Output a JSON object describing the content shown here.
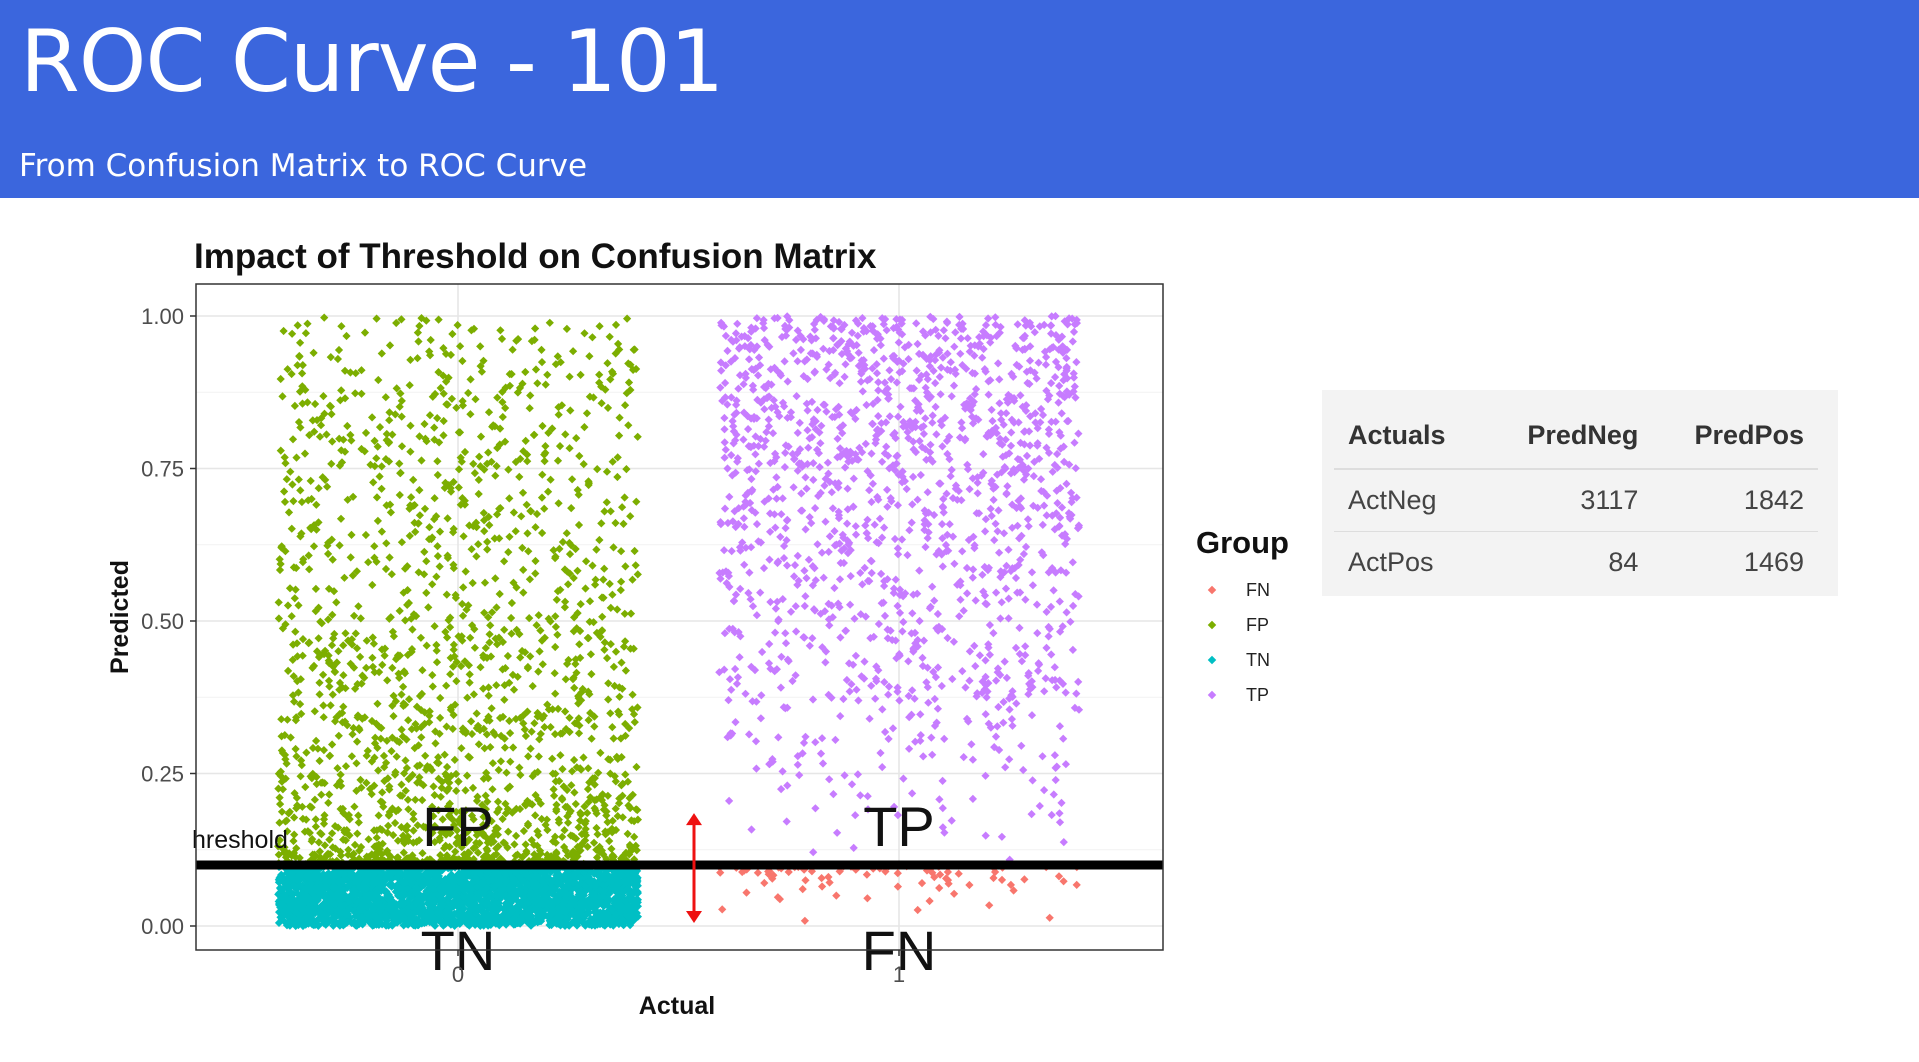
{
  "slide": {
    "title": "ROC Curve - 101",
    "subtitle": "From Confusion Matrix to ROC Curve"
  },
  "chart_data": {
    "type": "scatter",
    "title": "Impact of Threshold on Confusion Matrix",
    "xlabel": "Actual",
    "ylabel": "Predicted",
    "x_categories": [
      "0",
      "1"
    ],
    "yticks": [
      "0.00",
      "0.25",
      "0.50",
      "0.75",
      "1.00"
    ],
    "ylim": [
      0,
      1
    ],
    "threshold": 0.1,
    "threshold_label": "hreshold",
    "region_labels": [
      "FP",
      "TN",
      "TP",
      "FN"
    ],
    "grid": true,
    "legend": {
      "title": "Group",
      "position": "right",
      "entries": [
        "FN",
        "FP",
        "TN",
        "TP"
      ]
    },
    "colors": {
      "FN": "#f8766d",
      "FP": "#7cae00",
      "TN": "#00bfc4",
      "TP": "#c77cff",
      "arrow": "#ee1111"
    },
    "series": [
      {
        "name": "TN",
        "actual": "0",
        "count": 3117,
        "predicted_range": [
          0.0,
          0.1
        ]
      },
      {
        "name": "FP",
        "actual": "0",
        "count": 1842,
        "predicted_range": [
          0.1,
          1.0
        ]
      },
      {
        "name": "FN",
        "actual": "1",
        "count": 84,
        "predicted_range": [
          0.0,
          0.1
        ]
      },
      {
        "name": "TP",
        "actual": "1",
        "count": 1469,
        "predicted_range": [
          0.1,
          1.0
        ]
      }
    ]
  },
  "confusion_table": {
    "headers": [
      "Actuals",
      "PredNeg",
      "PredPos"
    ],
    "rows": [
      {
        "label": "ActNeg",
        "pred_neg": "3117",
        "pred_pos": "1842"
      },
      {
        "label": "ActPos",
        "pred_neg": "84",
        "pred_pos": "1469"
      }
    ]
  }
}
